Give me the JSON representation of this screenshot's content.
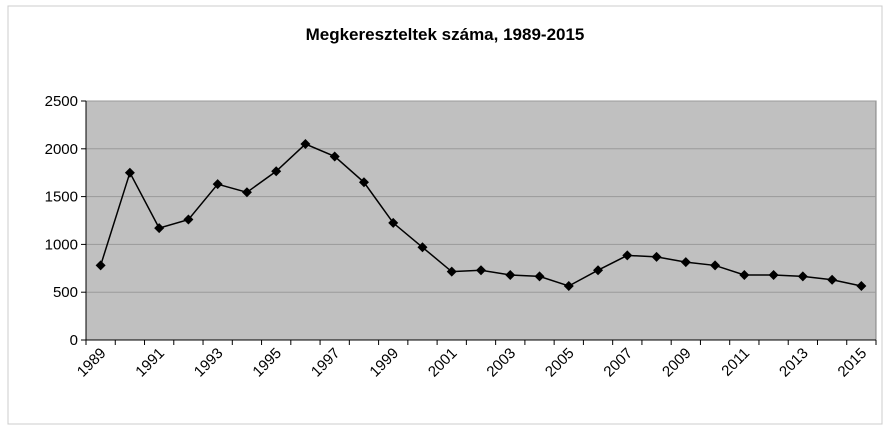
{
  "chart_data": {
    "type": "line",
    "title": "Megkereszteltek száma, 1989-2015",
    "categories": [
      "1989",
      null,
      "1991",
      null,
      "1993",
      null,
      "1995",
      null,
      "1997",
      null,
      "1999",
      null,
      "2001",
      null,
      "2003",
      null,
      "2005",
      null,
      "2007",
      null,
      "2009",
      null,
      "2011",
      null,
      "2013",
      null,
      "2015"
    ],
    "values": [
      780,
      1750,
      1170,
      1260,
      1630,
      1545,
      1765,
      2050,
      1920,
      1650,
      1225,
      970,
      715,
      730,
      680,
      665,
      565,
      730,
      885,
      870,
      815,
      780,
      680,
      680,
      665,
      630,
      565
    ],
    "color": "#000000",
    "ylim": [
      0,
      2500
    ],
    "yticks": [
      0,
      500,
      1000,
      1500,
      2000,
      2500
    ],
    "grid": true
  }
}
